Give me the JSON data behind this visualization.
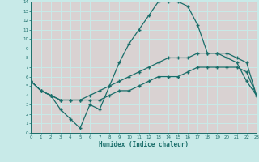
{
  "xlabel": "Humidex (Indice chaleur)",
  "bg_color": "#c8eae8",
  "grid_color_h": "#e8c8c8",
  "grid_color_v": "#e8c8c8",
  "line_color": "#1a6e6a",
  "xlim": [
    0,
    23
  ],
  "ylim": [
    0,
    14
  ],
  "line1_x": [
    0,
    1,
    2,
    3,
    4,
    5,
    6,
    7,
    8,
    9,
    10,
    11,
    12,
    13,
    14,
    15,
    16,
    17,
    18,
    19,
    20,
    21,
    22,
    23
  ],
  "line1_y": [
    5.5,
    4.5,
    4.0,
    2.5,
    1.5,
    0.5,
    3.0,
    2.5,
    5.0,
    7.5,
    9.5,
    11.0,
    12.5,
    14.0,
    14.0,
    14.0,
    13.5,
    11.5,
    8.5,
    8.5,
    8.0,
    7.5,
    5.5,
    4.0
  ],
  "line2_x": [
    0,
    1,
    2,
    3,
    4,
    5,
    6,
    7,
    8,
    9,
    10,
    11,
    12,
    13,
    14,
    15,
    16,
    17,
    18,
    19,
    20,
    21,
    22,
    23
  ],
  "line2_y": [
    5.5,
    4.5,
    4.0,
    3.5,
    3.5,
    3.5,
    4.0,
    4.5,
    5.0,
    5.5,
    6.0,
    6.5,
    7.0,
    7.5,
    8.0,
    8.0,
    8.0,
    8.5,
    8.5,
    8.5,
    8.5,
    8.0,
    7.5,
    4.0
  ],
  "line3_x": [
    0,
    1,
    2,
    3,
    4,
    5,
    6,
    7,
    8,
    9,
    10,
    11,
    12,
    13,
    14,
    15,
    16,
    17,
    18,
    19,
    20,
    21,
    22,
    23
  ],
  "line3_y": [
    5.5,
    4.5,
    4.0,
    3.5,
    3.5,
    3.5,
    3.5,
    3.5,
    4.0,
    4.5,
    4.5,
    5.0,
    5.5,
    6.0,
    6.0,
    6.0,
    6.5,
    7.0,
    7.0,
    7.0,
    7.0,
    7.0,
    6.5,
    4.0
  ],
  "yticks": [
    0,
    1,
    2,
    3,
    4,
    5,
    6,
    7,
    8,
    9,
    10,
    11,
    12,
    13,
    14
  ],
  "xticks": [
    0,
    1,
    2,
    3,
    4,
    5,
    6,
    7,
    8,
    9,
    10,
    11,
    12,
    13,
    14,
    15,
    16,
    17,
    18,
    19,
    20,
    21,
    22,
    23
  ],
  "xtick_labels": [
    "0",
    "1",
    "2",
    "3",
    "4",
    "5",
    "6",
    "7",
    "8",
    "9",
    "10",
    "11",
    "12",
    "13",
    "14",
    "15",
    "16",
    "17",
    "18",
    "19",
    "20",
    "21",
    "22",
    "23"
  ],
  "ytick_labels": [
    "0",
    "1",
    "2",
    "3",
    "4",
    "5",
    "6",
    "7",
    "8",
    "9",
    "10",
    "11",
    "12",
    "13",
    "14"
  ],
  "pink_fill_color": "#e8c0c0",
  "marker": "+"
}
